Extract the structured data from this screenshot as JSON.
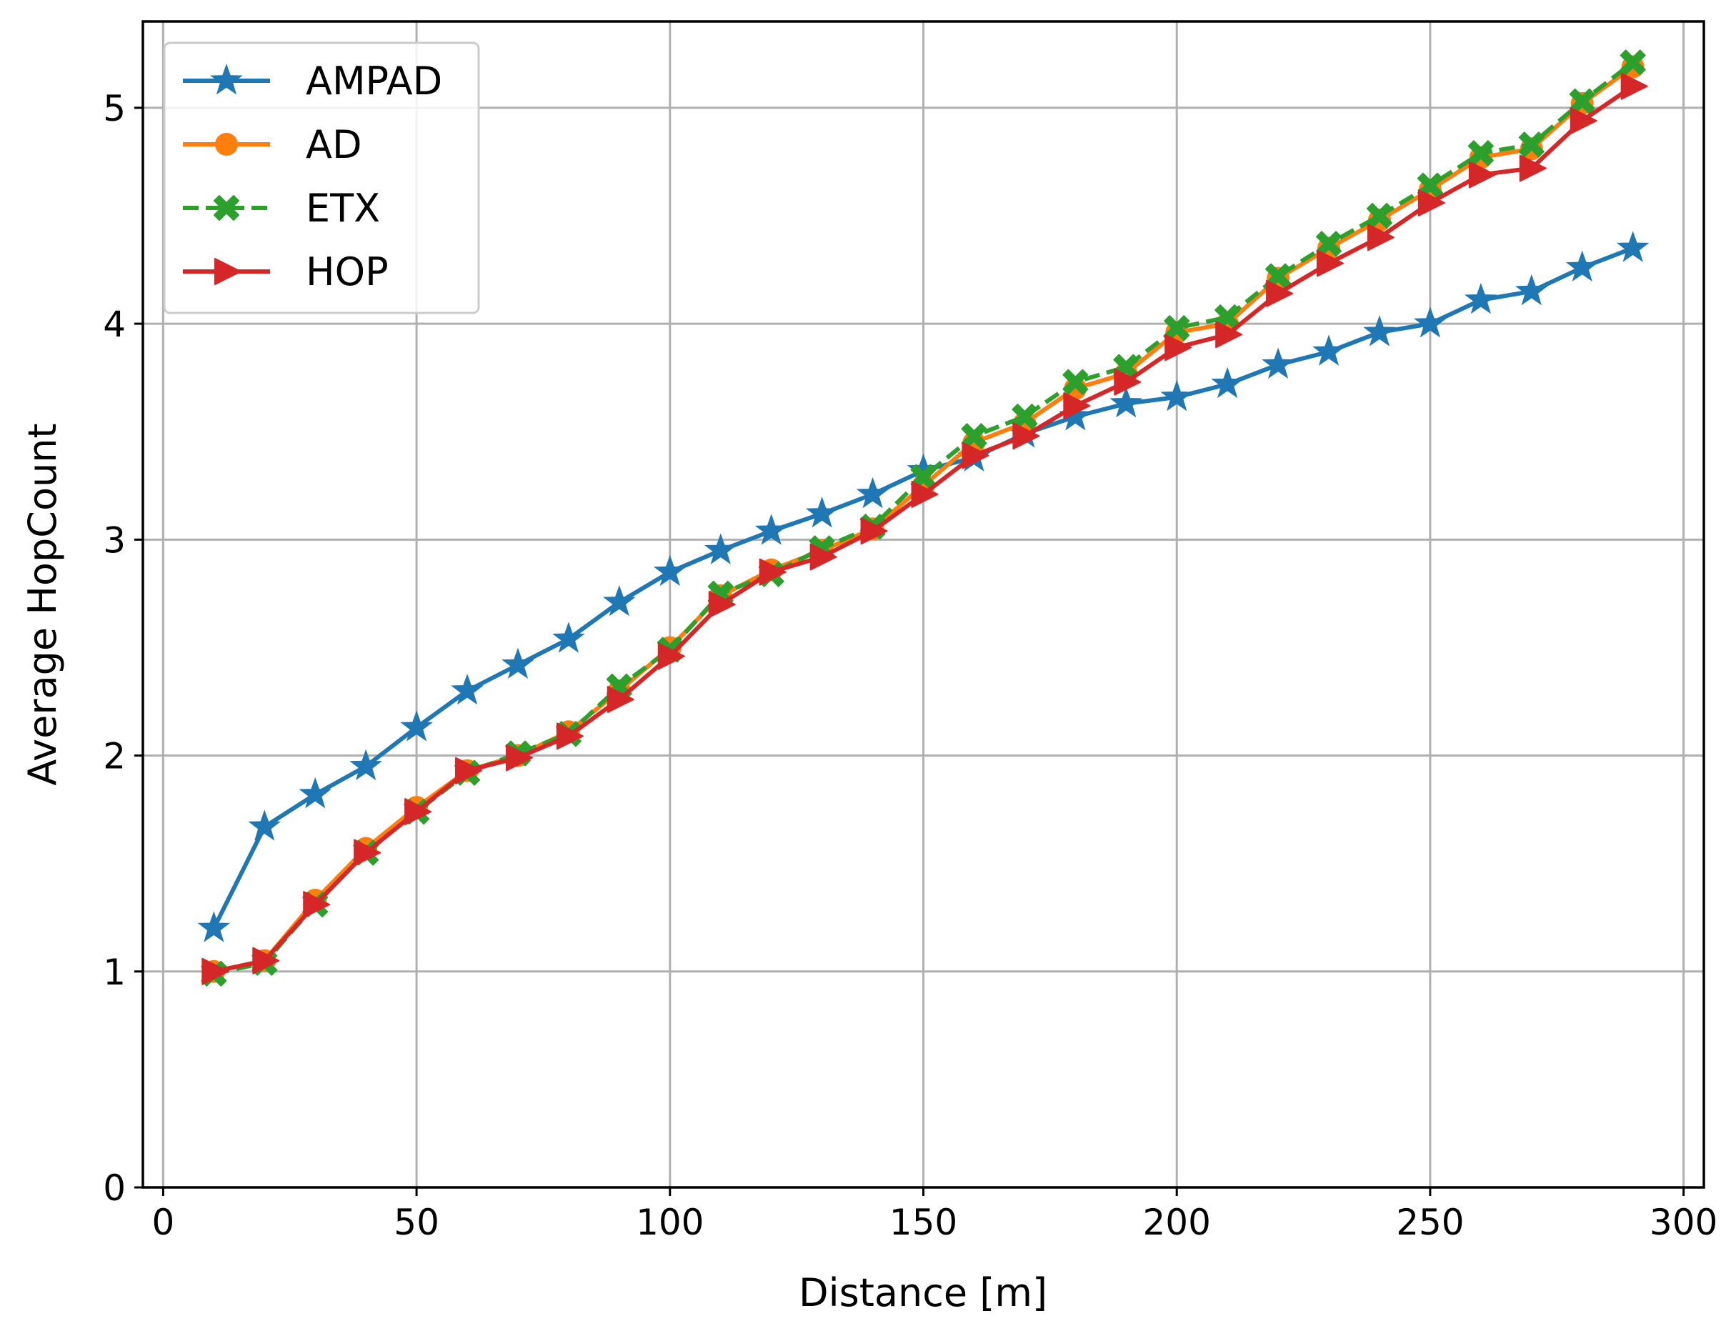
{
  "chart_data": {
    "type": "line",
    "title": "",
    "xlabel": "Distance [m]",
    "ylabel": "Average HopCount",
    "xlim": [
      -4,
      304
    ],
    "ylim": [
      0,
      5.4
    ],
    "xticks": [
      0,
      50,
      100,
      150,
      200,
      250,
      300
    ],
    "yticks": [
      0,
      1,
      2,
      3,
      4,
      5
    ],
    "xtick_labels": [
      "0",
      "50",
      "100",
      "150",
      "200",
      "250",
      "300"
    ],
    "ytick_labels": [
      "0",
      "1",
      "2",
      "3",
      "4",
      "5"
    ],
    "grid": true,
    "legend_position": "upper-left",
    "x": [
      10,
      20,
      30,
      40,
      50,
      60,
      70,
      80,
      90,
      100,
      110,
      120,
      130,
      140,
      150,
      160,
      170,
      180,
      190,
      200,
      210,
      220,
      230,
      240,
      250,
      260,
      270,
      280,
      290
    ],
    "series": [
      {
        "name": "AMPAD",
        "color": "#1f77b4",
        "marker": "star",
        "linestyle": "solid",
        "values": [
          1.2,
          1.67,
          1.82,
          1.95,
          2.13,
          2.3,
          2.42,
          2.54,
          2.71,
          2.85,
          2.95,
          3.04,
          3.12,
          3.21,
          3.32,
          3.38,
          3.49,
          3.57,
          3.63,
          3.66,
          3.72,
          3.81,
          3.87,
          3.96,
          4.0,
          4.11,
          4.15,
          4.26,
          4.35
        ]
      },
      {
        "name": "AD",
        "color": "#ff7f0e",
        "marker": "circle",
        "linestyle": "solid",
        "values": [
          1.0,
          1.05,
          1.33,
          1.57,
          1.76,
          1.93,
          2.0,
          2.11,
          2.3,
          2.5,
          2.74,
          2.86,
          2.95,
          3.05,
          3.25,
          3.45,
          3.54,
          3.7,
          3.77,
          3.96,
          4.0,
          4.21,
          4.35,
          4.48,
          4.62,
          4.77,
          4.81,
          5.02,
          5.19
        ]
      },
      {
        "name": "ETX",
        "color": "#2ca02c",
        "marker": "x-filled",
        "linestyle": "dashed",
        "values": [
          0.99,
          1.04,
          1.31,
          1.55,
          1.74,
          1.92,
          2.01,
          2.1,
          2.32,
          2.49,
          2.75,
          2.84,
          2.96,
          3.06,
          3.29,
          3.48,
          3.57,
          3.73,
          3.8,
          3.98,
          4.03,
          4.22,
          4.37,
          4.5,
          4.64,
          4.79,
          4.83,
          5.03,
          5.21
        ]
      },
      {
        "name": "HOP",
        "color": "#d62728",
        "marker": "triangle-right",
        "linestyle": "solid",
        "values": [
          1.0,
          1.05,
          1.31,
          1.55,
          1.74,
          1.93,
          1.99,
          2.09,
          2.26,
          2.46,
          2.7,
          2.85,
          2.92,
          3.04,
          3.21,
          3.39,
          3.48,
          3.62,
          3.73,
          3.89,
          3.95,
          4.14,
          4.28,
          4.4,
          4.56,
          4.69,
          4.72,
          4.94,
          5.1
        ]
      }
    ]
  }
}
